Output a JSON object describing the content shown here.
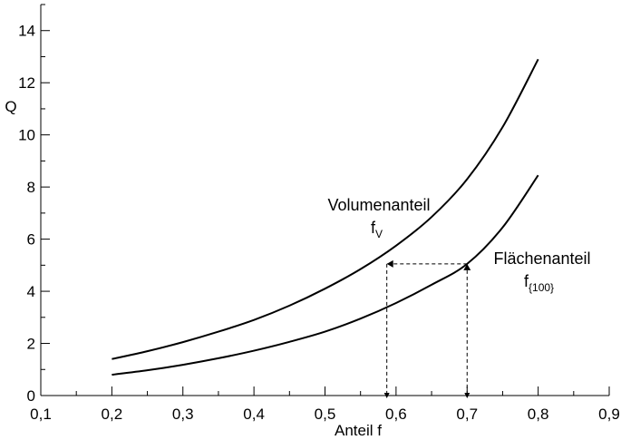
{
  "chart_data": {
    "type": "line",
    "title": "",
    "xlabel": "Anteil f",
    "ylabel": "Q",
    "xlim": [
      0.1,
      0.9
    ],
    "ylim": [
      0,
      15
    ],
    "x_ticks": [
      0.1,
      0.2,
      0.3,
      0.4,
      0.5,
      0.6,
      0.7,
      0.8,
      0.9
    ],
    "x_tick_labels": [
      "0,1",
      "0,2",
      "0,3",
      "0,4",
      "0,5",
      "0,6",
      "0,7",
      "0,8",
      "0,9"
    ],
    "y_ticks": [
      0,
      2,
      4,
      6,
      8,
      10,
      12,
      14
    ],
    "y_tick_labels": [
      "0",
      "2",
      "4",
      "6",
      "8",
      "10",
      "12",
      "14"
    ],
    "grid": false,
    "legend": "none",
    "series": [
      {
        "label": "Volumenanteil",
        "label_sub": "V",
        "x": [
          0.2,
          0.25,
          0.3,
          0.35,
          0.4,
          0.45,
          0.5,
          0.55,
          0.6,
          0.65,
          0.7,
          0.75,
          0.8
        ],
        "y": [
          1.4,
          1.7,
          2.05,
          2.45,
          2.9,
          3.45,
          4.1,
          4.85,
          5.75,
          6.85,
          8.3,
          10.3,
          12.9
        ]
      },
      {
        "label": "Flächenanteil",
        "label_sub": "{100}",
        "x": [
          0.2,
          0.25,
          0.3,
          0.35,
          0.4,
          0.45,
          0.5,
          0.55,
          0.6,
          0.65,
          0.7,
          0.75,
          0.8
        ],
        "y": [
          0.8,
          0.97,
          1.18,
          1.43,
          1.72,
          2.06,
          2.45,
          2.95,
          3.55,
          4.25,
          5.05,
          6.45,
          8.45
        ]
      }
    ],
    "annotations": [
      {
        "type": "dashed-arrow",
        "from": [
          0.7,
          5.05
        ],
        "to": [
          0.7,
          0
        ]
      },
      {
        "type": "dashed-line",
        "from": [
          0.7,
          5.05
        ],
        "to": [
          0.587,
          5.05
        ]
      },
      {
        "type": "dashed-arrow",
        "from": [
          0.587,
          5.05
        ],
        "to": [
          0.587,
          0
        ]
      }
    ]
  }
}
